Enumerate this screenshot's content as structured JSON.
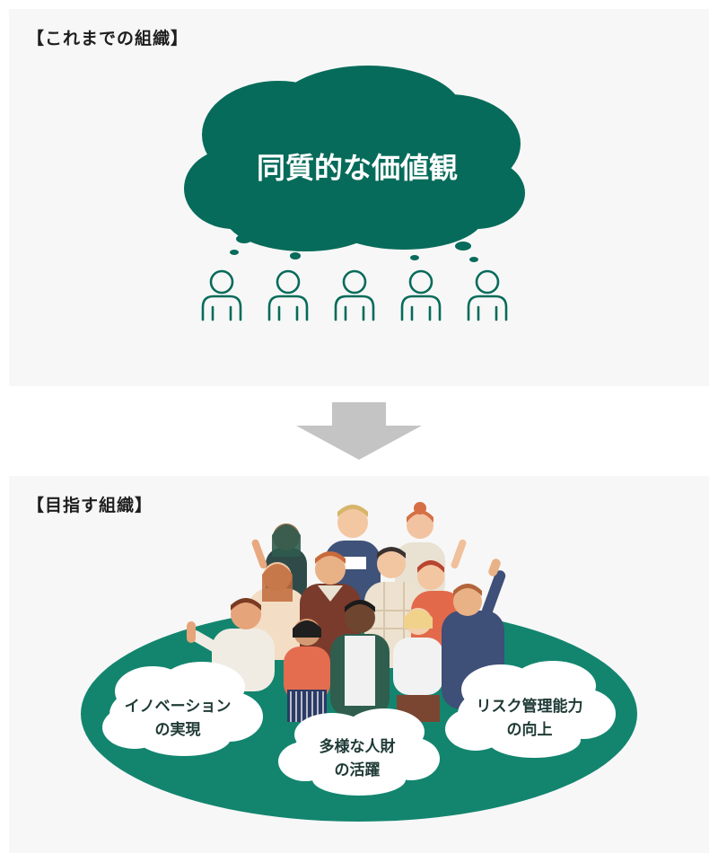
{
  "top_section": {
    "title": "【これまでの組織】",
    "cloud_text": "同質的な価値観"
  },
  "bottom_section": {
    "title": "【目指す組織】",
    "bubbles": [
      {
        "line1": "イノベーション",
        "line2": "の実現"
      },
      {
        "line1": "多様な人財",
        "line2": "の活躍"
      },
      {
        "line1": "リスク管理能力",
        "line2": "の向上"
      }
    ]
  },
  "colors": {
    "dark_green": "#066b5a",
    "mid_green": "#13856f",
    "arrow_gray": "#c4c4c4",
    "panel_bg": "#f7f7f7"
  }
}
